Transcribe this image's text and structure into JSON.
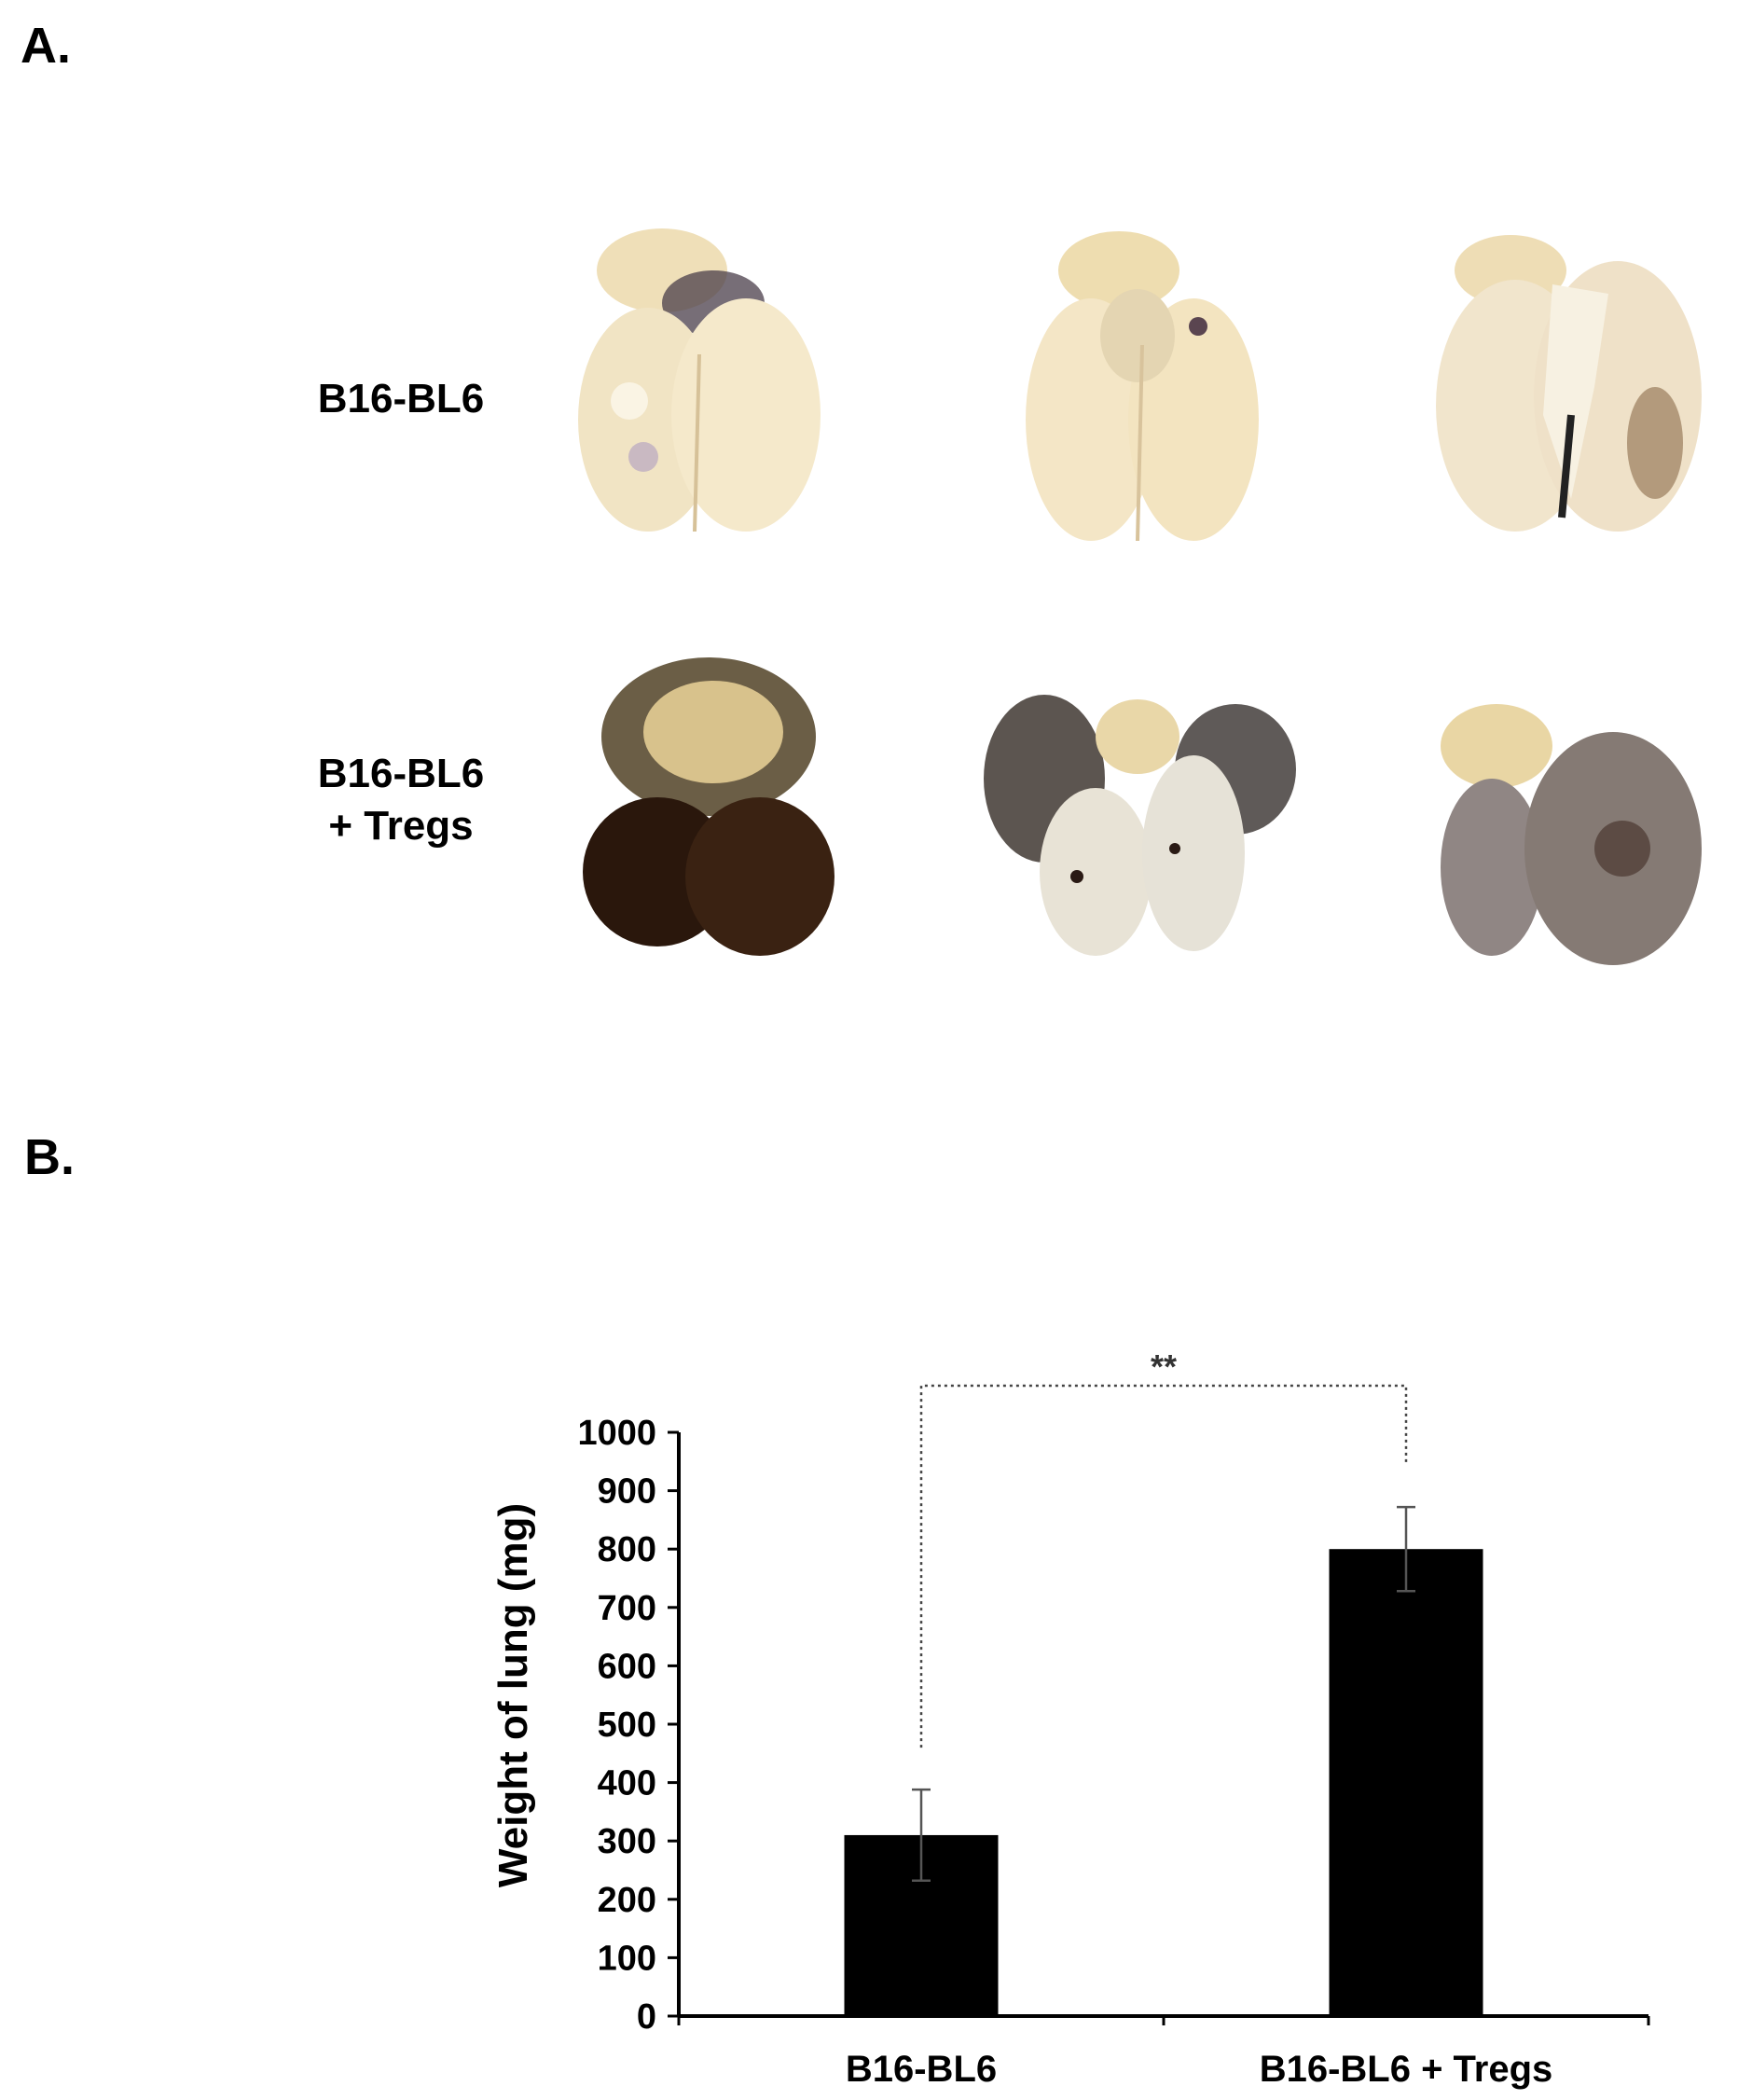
{
  "panels": {
    "a_label": "A.",
    "b_label": "B."
  },
  "photo_grid": {
    "rows": [
      {
        "label_line1": "B16-BL6",
        "label_line2": ""
      },
      {
        "label_line1": "B16-BL6",
        "label_line2": "+ Tregs"
      }
    ],
    "specimen_colors": {
      "pale_lung": "#f3e6c8",
      "pale_shadow": "#d9c49a",
      "dark_lung": "#2a1a10",
      "tumor_gray": "#5a5048",
      "gray_lung": "#8e8580"
    }
  },
  "chart_data": {
    "type": "bar",
    "categories": [
      "B16-BL6",
      "B16-BL6 + Tregs"
    ],
    "values": [
      310,
      800
    ],
    "error": [
      78,
      72
    ],
    "ylabel": "Weight of lung (mg)",
    "xlabel": "",
    "ylim": [
      0,
      1000
    ],
    "yticks": [
      0,
      100,
      200,
      300,
      400,
      500,
      600,
      700,
      800,
      900,
      1000
    ],
    "bar_color": "#000000",
    "significance": {
      "between": [
        0,
        1
      ],
      "label": "**"
    },
    "grid": false
  }
}
